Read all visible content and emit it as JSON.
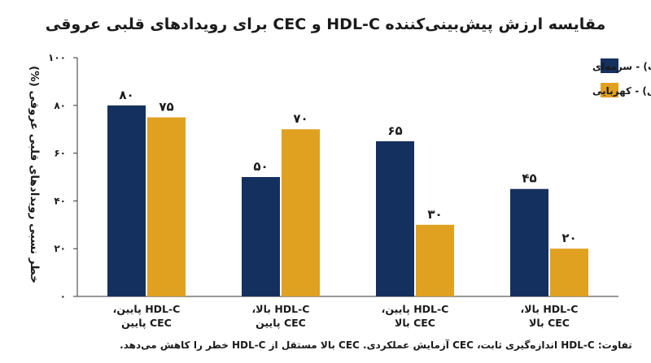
{
  "chart_data": {
    "type": "bar",
    "title": "مقایسه ارزش پیش‌بینی‌کننده HDL-C و CEC برای رویدادهای قلبی عروقی",
    "ylabel": "خطر نسبی رویدادهای قلبی عروقی (%)",
    "xlabel": "",
    "ylim": [
      0,
      100
    ],
    "yticks": [
      0,
      20,
      40,
      60,
      80,
      100
    ],
    "ytick_labels": [
      "۰",
      "۲۰",
      "۴۰",
      "۶۰",
      "۸۰",
      "۱۰۰"
    ],
    "grid": false,
    "legend_position": "top-right",
    "categories": [
      {
        "line1": "HDL-C پایین،",
        "line2": "CEC پایین"
      },
      {
        "line1": "HDL-C بالا،",
        "line2": "CEC پایین"
      },
      {
        "line1": "HDL-C پایین،",
        "line2": "CEC بالا"
      },
      {
        "line1": "HDL-C بالا،",
        "line2": "CEC بالا"
      }
    ],
    "series": [
      {
        "name": "HDL-C (غلظت) - سرمه‌ای",
        "color": "#14305e",
        "values": [
          80,
          50,
          65,
          45
        ],
        "value_labels": [
          "۸۰",
          "۵۰",
          "۶۵",
          "۴۵"
        ]
      },
      {
        "name": "CEC (ظرفیت تخلیه کلسترول) - کهربایی",
        "color": "#e0a020",
        "values": [
          75,
          70,
          30,
          20
        ],
        "value_labels": [
          "۷۵",
          "۷۰",
          "۳۰",
          "۲۰"
        ]
      }
    ],
    "footnote": "تفاوت: HDL-C اندازه‌گیری ثابت، CEC آزمایش عملکردی. CEC بالا مستقل از HDL-C خطر را کاهش می‌دهد."
  }
}
